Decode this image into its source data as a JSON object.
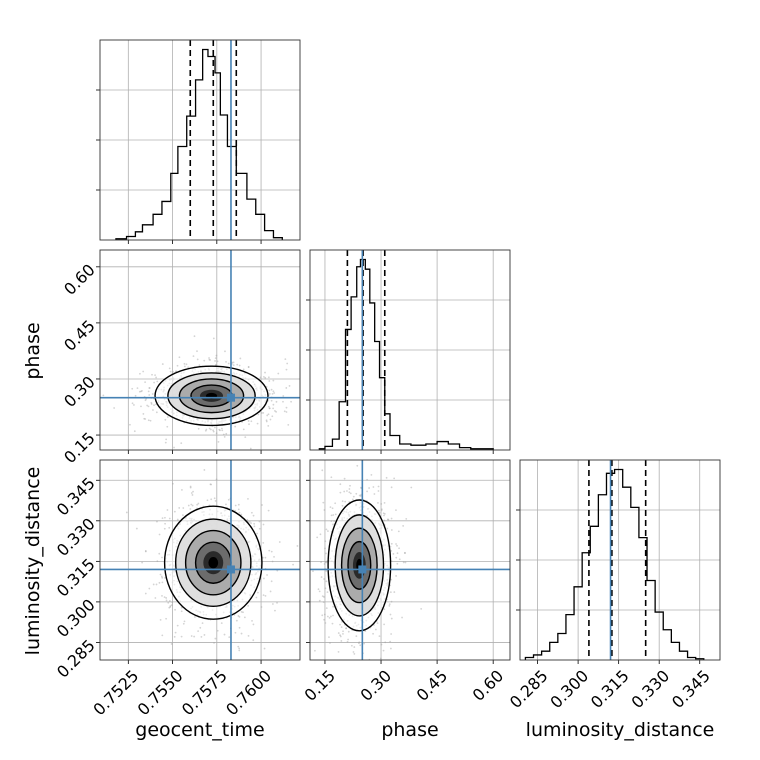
{
  "chart_data": {
    "type": "corner",
    "parameters": [
      "geocent_time",
      "phase",
      "luminosity_distance"
    ],
    "axis_labels": {
      "bottom": [
        "geocent_time",
        "phase",
        "luminosity_distance"
      ],
      "left": [
        "phase",
        "luminosity_distance"
      ]
    },
    "ranges": {
      "geocent_time": [
        0.7509,
        0.7622
      ],
      "phase": [
        0.11,
        0.645
      ],
      "luminosity_distance": [
        0.2785,
        0.3525
      ]
    },
    "ticks": {
      "geocent_time": [
        0.7525,
        0.755,
        0.7575,
        0.76
      ],
      "phase": [
        0.15,
        0.3,
        0.45,
        0.6
      ],
      "luminosity_distance": [
        0.285,
        0.3,
        0.315,
        0.33,
        0.345
      ]
    },
    "tick_labels": {
      "geocent_time": [
        "0.7525",
        "0.7550",
        "0.7575",
        "0.7600"
      ],
      "phase": [
        "0.15",
        "0.30",
        "0.45",
        "0.60"
      ],
      "luminosity_distance": [
        "0.285",
        "0.300",
        "0.315",
        "0.330",
        "0.345"
      ]
    },
    "truths": {
      "geocent_time": 0.7583,
      "phase": 0.25,
      "luminosity_distance": 0.312
    },
    "quantiles": {
      "geocent_time": [
        0.756,
        0.7573,
        0.7586
      ],
      "phase": [
        0.21,
        0.252,
        0.31
      ],
      "luminosity_distance": [
        0.304,
        0.3125,
        0.325
      ]
    },
    "histograms": {
      "geocent_time": {
        "edges": [
          0.7518,
          0.7524,
          0.7529,
          0.7533,
          0.7539,
          0.7544,
          0.7549,
          0.7553,
          0.7558,
          0.7563,
          0.7567,
          0.757,
          0.7574,
          0.7577,
          0.7581,
          0.7586,
          0.7592,
          0.7597,
          0.7602,
          0.7607,
          0.7612
        ],
        "counts": [
          1,
          3,
          7,
          13,
          22,
          33,
          57,
          80,
          106,
          137,
          163,
          157,
          143,
          107,
          80,
          57,
          35,
          22,
          8,
          2
        ]
      },
      "phase": {
        "edges": [
          0.135,
          0.15,
          0.17,
          0.188,
          0.205,
          0.22,
          0.235,
          0.245,
          0.258,
          0.27,
          0.283,
          0.296,
          0.31,
          0.324,
          0.35,
          0.38,
          0.42,
          0.45,
          0.48,
          0.51,
          0.54,
          0.6
        ],
        "counts": [
          1,
          3,
          9,
          40,
          100,
          127,
          152,
          158,
          150,
          122,
          90,
          60,
          30,
          12,
          5,
          4,
          5,
          7,
          5,
          2,
          1
        ]
      },
      "luminosity_distance": {
        "edges": [
          0.2805,
          0.2835,
          0.2865,
          0.2895,
          0.2925,
          0.2955,
          0.2985,
          0.3015,
          0.3045,
          0.3075,
          0.3105,
          0.3135,
          0.3165,
          0.3195,
          0.3225,
          0.3255,
          0.3285,
          0.3315,
          0.3345,
          0.3375,
          0.3405,
          0.3435,
          0.3465
        ],
        "counts": [
          2,
          4,
          7,
          14,
          21,
          36,
          58,
          85,
          106,
          131,
          148,
          151,
          137,
          121,
          97,
          63,
          38,
          24,
          14,
          7,
          2,
          1
        ]
      }
    },
    "joint_2d": [
      {
        "x": "geocent_time",
        "y": "phase",
        "center": [
          0.7572,
          0.255
        ],
        "sigma": [
          0.00145,
          0.036
        ]
      },
      {
        "x": "geocent_time",
        "y": "luminosity_distance",
        "center": [
          0.7573,
          0.3145
        ],
        "sigma": [
          0.00125,
          0.0095
        ]
      },
      {
        "x": "phase",
        "y": "luminosity_distance",
        "center": [
          0.242,
          0.3135
        ],
        "sigma": [
          0.038,
          0.011
        ]
      }
    ],
    "colors": {
      "truth": "#4682b4",
      "histogram": "#000000",
      "quantile": "#000000",
      "grid": "#b0b0b0",
      "points": "#a0a0a0"
    },
    "grid": true
  }
}
